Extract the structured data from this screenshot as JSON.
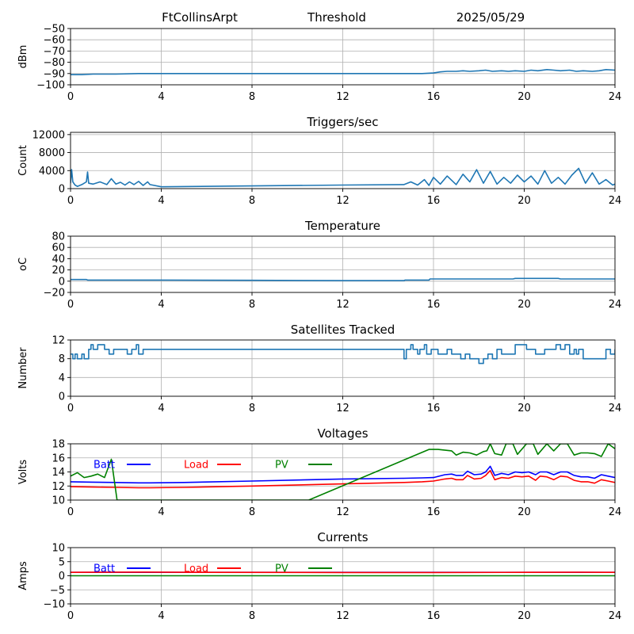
{
  "header": {
    "station": "FtCollinsArpt",
    "mode": "Threshold",
    "date": "2025/05/29"
  },
  "colors": {
    "series": "#1f77b4",
    "batt": "#0000ff",
    "load": "#ff0000",
    "pv": "#008000",
    "grid": "#b0b0b0"
  },
  "chart_data": [
    {
      "type": "line",
      "title": "",
      "ylabel": "dBm",
      "xlim": [
        0,
        24
      ],
      "ylim": [
        -100,
        -50
      ],
      "xticks": [
        0,
        4,
        8,
        12,
        16,
        20,
        24
      ],
      "yticks": [
        -100,
        -90,
        -80,
        -70,
        -60,
        -50
      ],
      "ytick_labels": [
        "−100",
        "−90",
        "−80",
        "−70",
        "−60",
        "−50"
      ],
      "grid": true,
      "series": [
        {
          "color_key": "series",
          "x": [
            0,
            0.5,
            1,
            2,
            3,
            3.5,
            5,
            8,
            12,
            14.7,
            15.5,
            16,
            16.3,
            16.6,
            17,
            17.3,
            17.6,
            18,
            18.3,
            18.6,
            19,
            19.3,
            19.6,
            20,
            20.3,
            20.6,
            21,
            21.3,
            21.6,
            22,
            22.3,
            22.6,
            23,
            23.3,
            23.6,
            24
          ],
          "y": [
            -91,
            -91,
            -90.5,
            -90.5,
            -90,
            -90,
            -90,
            -90,
            -90,
            -90,
            -90,
            -89.5,
            -88.5,
            -88,
            -88,
            -87.5,
            -88,
            -87.5,
            -87,
            -88,
            -87.5,
            -88,
            -87.5,
            -88,
            -87,
            -87.5,
            -86.5,
            -87,
            -87.5,
            -87,
            -88,
            -87.5,
            -88,
            -87.5,
            -86.5,
            -87
          ]
        }
      ]
    },
    {
      "type": "line",
      "title": "Triggers/sec",
      "ylabel": "Count",
      "xlim": [
        0,
        24
      ],
      "ylim": [
        0,
        12500
      ],
      "xticks": [
        0,
        4,
        8,
        12,
        16,
        20,
        24
      ],
      "yticks": [
        0,
        4000,
        8000,
        12000
      ],
      "ytick_labels": [
        "0",
        "4000",
        "8000",
        "12000"
      ],
      "grid": true,
      "series": [
        {
          "color_key": "series",
          "x": [
            0,
            0.05,
            0.1,
            0.2,
            0.3,
            0.5,
            0.7,
            0.75,
            0.8,
            1,
            1.3,
            1.6,
            1.8,
            2,
            2.2,
            2.4,
            2.6,
            2.8,
            3,
            3.2,
            3.4,
            3.5,
            4,
            8,
            12,
            14.7,
            15,
            15.3,
            15.6,
            15.8,
            16,
            16.3,
            16.6,
            17,
            17.3,
            17.6,
            17.9,
            18.2,
            18.5,
            18.8,
            19.1,
            19.4,
            19.7,
            20,
            20.3,
            20.6,
            20.9,
            21.2,
            21.5,
            21.8,
            22.1,
            22.4,
            22.7,
            23,
            23.3,
            23.6,
            23.9,
            24
          ],
          "y": [
            1200,
            4200,
            1500,
            800,
            500,
            900,
            1500,
            3700,
            1200,
            1000,
            1500,
            900,
            2200,
            1000,
            1400,
            800,
            1500,
            900,
            1600,
            700,
            1500,
            900,
            400,
            600,
            800,
            900,
            1500,
            800,
            2000,
            700,
            2500,
            1000,
            2800,
            900,
            3200,
            1500,
            4200,
            1200,
            3800,
            1000,
            2500,
            1200,
            3000,
            1500,
            2800,
            1000,
            4000,
            1200,
            2500,
            1000,
            3000,
            4500,
            1200,
            3500,
            1000,
            2000,
            800,
            1000
          ]
        }
      ]
    },
    {
      "type": "line",
      "title": "Temperature",
      "ylabel": "oC",
      "xlim": [
        0,
        24
      ],
      "ylim": [
        -20,
        80
      ],
      "xticks": [
        0,
        4,
        8,
        12,
        16,
        20,
        24
      ],
      "yticks": [
        -20,
        0,
        20,
        40,
        60,
        80
      ],
      "ytick_labels": [
        "−20",
        "0",
        "20",
        "40",
        "60",
        "80"
      ],
      "grid": true,
      "series": [
        {
          "color_key": "series",
          "x": [
            0,
            0.7,
            0.75,
            4,
            8,
            12,
            14.7,
            14.75,
            15.8,
            15.85,
            19.5,
            19.6,
            21.5,
            21.6,
            24
          ],
          "y": [
            3,
            3,
            2,
            2,
            1.5,
            1,
            1,
            2,
            2,
            4,
            4,
            5,
            5,
            4,
            4
          ]
        }
      ]
    },
    {
      "type": "line",
      "title": "Satellites Tracked",
      "ylabel": "Number",
      "xlim": [
        0,
        24
      ],
      "ylim": [
        0,
        12
      ],
      "xticks": [
        0,
        4,
        8,
        12,
        16,
        20,
        24
      ],
      "yticks": [
        0,
        4,
        8,
        12
      ],
      "ytick_labels": [
        "0",
        "4",
        "8",
        "12"
      ],
      "grid": true,
      "steps": true,
      "series": [
        {
          "color_key": "series",
          "x": [
            0,
            0.1,
            0.2,
            0.3,
            0.5,
            0.6,
            0.8,
            0.9,
            1.0,
            1.2,
            1.5,
            1.7,
            1.9,
            2.1,
            2.5,
            2.7,
            2.8,
            2.9,
            3.0,
            3.2,
            3.5,
            14.7,
            14.8,
            15.0,
            15.1,
            15.3,
            15.4,
            15.6,
            15.7,
            15.9,
            16.2,
            16.4,
            16.6,
            16.8,
            17.0,
            17.2,
            17.4,
            17.6,
            17.8,
            18.0,
            18.2,
            18.4,
            18.6,
            18.8,
            19.0,
            19.2,
            19.4,
            19.6,
            19.9,
            20.1,
            20.3,
            20.5,
            20.7,
            20.9,
            21.2,
            21.4,
            21.6,
            21.8,
            22.0,
            22.2,
            22.3,
            22.4,
            22.6,
            23.5,
            23.6,
            23.8,
            23.9,
            24
          ],
          "y": [
            9,
            8,
            9,
            8,
            9,
            8,
            10,
            11,
            10,
            11,
            10,
            9,
            10,
            10,
            9,
            10,
            10,
            11,
            9,
            10,
            10,
            8,
            10,
            11,
            10,
            9,
            10,
            11,
            9,
            10,
            9,
            9,
            10,
            9,
            9,
            8,
            9,
            8,
            8,
            7,
            8,
            9,
            8,
            10,
            9,
            9,
            9,
            11,
            11,
            10,
            10,
            9,
            9,
            10,
            10,
            11,
            10,
            11,
            9,
            10,
            9,
            10,
            8,
            8,
            10,
            9,
            9,
            10
          ]
        }
      ]
    },
    {
      "type": "line",
      "title": "Voltages",
      "ylabel": "Volts",
      "xlim": [
        0,
        24
      ],
      "ylim": [
        10,
        18
      ],
      "xticks": [
        0,
        4,
        8,
        12,
        16,
        20,
        24
      ],
      "yticks": [
        10,
        12,
        14,
        16,
        18
      ],
      "ytick_labels": [
        "10",
        "12",
        "14",
        "16",
        "18"
      ],
      "grid": true,
      "legend": "top-left",
      "series": [
        {
          "name": "Batt",
          "color_key": "batt",
          "x": [
            0,
            1,
            2,
            3,
            3.5,
            5,
            8,
            12,
            14.7,
            15.5,
            16,
            16.5,
            16.8,
            17,
            17.3,
            17.5,
            17.8,
            18.1,
            18.3,
            18.5,
            18.7,
            19,
            19.3,
            19.6,
            19.9,
            20.2,
            20.5,
            20.7,
            21,
            21.3,
            21.6,
            21.9,
            22.2,
            22.5,
            22.8,
            23.1,
            23.4,
            23.7,
            24
          ],
          "y": [
            12.6,
            12.55,
            12.5,
            12.45,
            12.45,
            12.5,
            12.7,
            13.0,
            13.1,
            13.15,
            13.2,
            13.6,
            13.7,
            13.5,
            13.5,
            14.1,
            13.6,
            13.7,
            14.0,
            14.8,
            13.5,
            13.8,
            13.6,
            14.0,
            13.9,
            14.0,
            13.6,
            14.0,
            14.0,
            13.6,
            14.0,
            14.0,
            13.5,
            13.3,
            13.3,
            13.1,
            13.6,
            13.4,
            13.2
          ]
        },
        {
          "name": "Load",
          "color_key": "load",
          "x": [
            0,
            1,
            2,
            3,
            3.5,
            5,
            8,
            12,
            14.7,
            15.5,
            16,
            16.5,
            16.8,
            17,
            17.3,
            17.5,
            17.8,
            18.1,
            18.3,
            18.5,
            18.7,
            19,
            19.3,
            19.6,
            19.9,
            20.2,
            20.5,
            20.7,
            21,
            21.3,
            21.6,
            21.9,
            22.2,
            22.5,
            22.8,
            23.1,
            23.4,
            23.7,
            24
          ],
          "y": [
            11.9,
            11.85,
            11.8,
            11.75,
            11.75,
            11.8,
            12.0,
            12.3,
            12.5,
            12.6,
            12.7,
            13.0,
            13.1,
            12.9,
            12.9,
            13.5,
            13.0,
            13.1,
            13.5,
            14.2,
            12.9,
            13.2,
            13.1,
            13.4,
            13.3,
            13.4,
            12.8,
            13.4,
            13.3,
            12.9,
            13.4,
            13.3,
            12.8,
            12.6,
            12.6,
            12.4,
            12.9,
            12.7,
            12.5
          ]
        },
        {
          "name": "PV",
          "color_key": "pv",
          "x": [
            0,
            0.3,
            0.6,
            0.9,
            1.2,
            1.5,
            1.8,
            2.05,
            10.5,
            15.8,
            16.2,
            16.8,
            17.0,
            17.3,
            17.6,
            17.9,
            18.2,
            18.35,
            18.5,
            18.7,
            19.0,
            19.2,
            19.5,
            19.7,
            20.1,
            20.4,
            20.6,
            21.0,
            21.3,
            21.6,
            21.9,
            22.2,
            22.5,
            22.8,
            23.1,
            23.4,
            23.7,
            24
          ],
          "y": [
            13.4,
            13.9,
            13.2,
            13.4,
            13.7,
            13.2,
            15.8,
            10.0,
            10.0,
            17.2,
            17.2,
            17.0,
            16.4,
            16.8,
            16.7,
            16.4,
            16.9,
            17.0,
            18.0,
            16.6,
            16.4,
            18.0,
            18.0,
            16.5,
            18.0,
            18.0,
            16.5,
            18.0,
            17.0,
            18.0,
            18.0,
            16.4,
            16.7,
            16.7,
            16.6,
            16.2,
            18.0,
            17.3
          ]
        }
      ]
    },
    {
      "type": "line",
      "title": "Currents",
      "ylabel": "Amps",
      "xlim": [
        0,
        24
      ],
      "ylim": [
        -10,
        10
      ],
      "xticks": [
        0,
        4,
        8,
        12,
        16,
        20,
        24
      ],
      "yticks": [
        -10,
        -5,
        0,
        5,
        10
      ],
      "ytick_labels": [
        "−10",
        "−5",
        "0",
        "5",
        "10"
      ],
      "grid": true,
      "legend": "top-left",
      "series": [
        {
          "name": "Batt",
          "color_key": "batt",
          "x": [
            0,
            24
          ],
          "y": [
            1.2,
            1.2
          ]
        },
        {
          "name": "Load",
          "color_key": "load",
          "x": [
            0,
            3.3,
            6,
            12,
            16,
            20,
            22.5,
            24
          ],
          "y": [
            1.2,
            1.3,
            1.2,
            1.15,
            1.15,
            1.2,
            1.25,
            1.2
          ]
        },
        {
          "name": "PV",
          "color_key": "pv",
          "x": [
            0,
            24
          ],
          "y": [
            0,
            0
          ]
        }
      ]
    }
  ]
}
